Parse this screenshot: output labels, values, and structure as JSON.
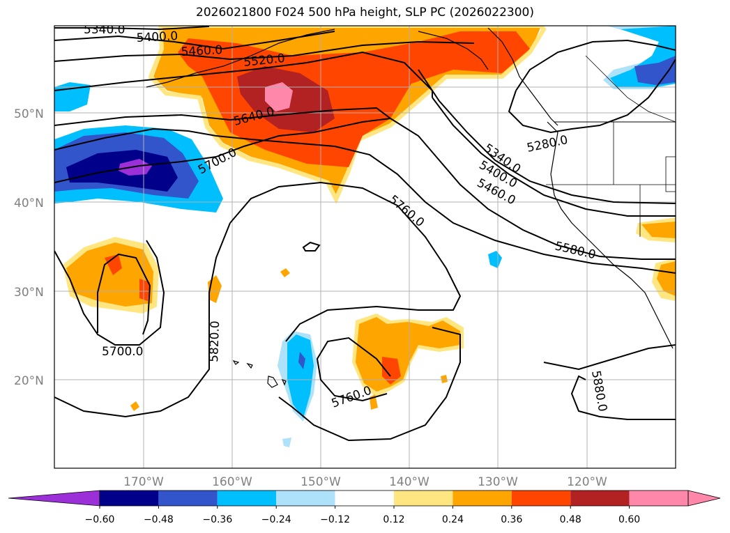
{
  "title": "2026021800 F024 500 hPa height, SLP PC (2026022300)",
  "lat_labels": [
    "50°N",
    "40°N",
    "30°N",
    "20°N"
  ],
  "lon_labels": [
    "170°W",
    "160°W",
    "150°W",
    "140°W",
    "130°W",
    "120°W"
  ],
  "contour_labels": [
    "5340.0",
    "5400.0",
    "5460.0",
    "5520.0",
    "5640.0",
    "5700.0",
    "5340.0",
    "5280.0",
    "5400.0",
    "5460.0",
    "5760.0",
    "5580.0",
    "5820.0",
    "5700.0",
    "5760.0",
    "5880.0"
  ],
  "colorbar": {
    "ticks": [
      "−0.60",
      "−0.48",
      "−0.36",
      "−0.24",
      "−0.12",
      "0.12",
      "0.24",
      "0.36",
      "0.48",
      "0.60"
    ],
    "colors": [
      "#9b30d9",
      "#00008b",
      "#3355cc",
      "#00bfff",
      "#aee2fa",
      "#ffffff",
      "#ffe680",
      "#ffa500",
      "#ff4500",
      "#b22222",
      "#ff88aa",
      "#ff88aa"
    ]
  }
}
